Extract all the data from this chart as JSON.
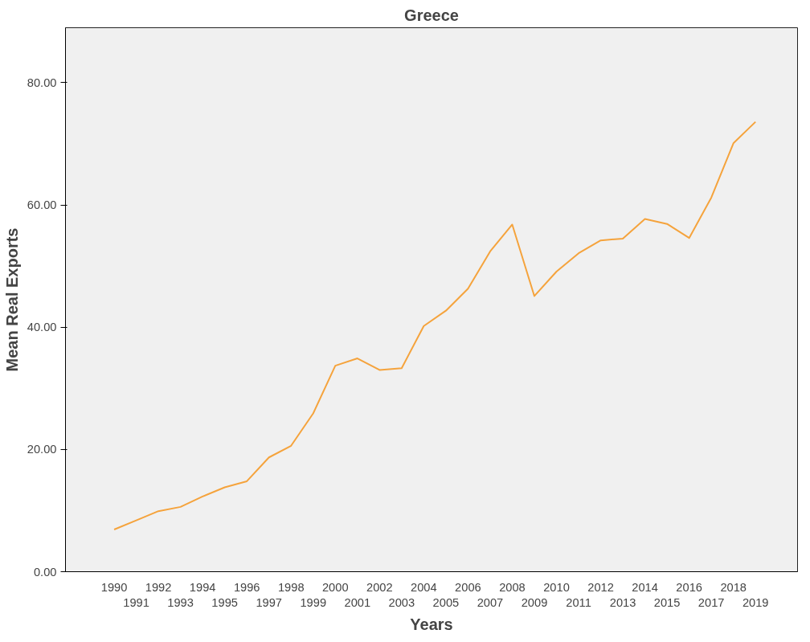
{
  "chart_data": {
    "type": "line",
    "title": "Greece",
    "xlabel": "Years",
    "ylabel": "Mean Real Exports",
    "categories": [
      "1990",
      "1991",
      "1992",
      "1993",
      "1994",
      "1995",
      "1996",
      "1997",
      "1998",
      "1999",
      "2000",
      "2001",
      "2002",
      "2003",
      "2004",
      "2005",
      "2006",
      "2007",
      "2008",
      "2009",
      "2010",
      "2011",
      "2012",
      "2013",
      "2014",
      "2015",
      "2016",
      "2017",
      "2018",
      "2019"
    ],
    "series": [
      {
        "color": "#f5a33c",
        "values": [
          6.9,
          8.4,
          9.9,
          10.6,
          12.3,
          13.8,
          14.8,
          18.7,
          20.6,
          25.9,
          33.7,
          34.9,
          33.0,
          33.3,
          40.2,
          42.7,
          46.3,
          52.4,
          56.8,
          45.1,
          49.1,
          52.1,
          54.2,
          54.5,
          57.7,
          56.9,
          54.6,
          61.2,
          70.1,
          73.6
        ]
      }
    ],
    "ylim": [
      0,
      89
    ],
    "yticks": [
      {
        "value": 0,
        "label": "0.00"
      },
      {
        "value": 20,
        "label": "20.00"
      },
      {
        "value": 40,
        "label": "40.00"
      },
      {
        "value": 60,
        "label": "60.00"
      },
      {
        "value": 80,
        "label": "80.00"
      }
    ],
    "grid": false,
    "marker": "none",
    "line_style": "solid"
  }
}
